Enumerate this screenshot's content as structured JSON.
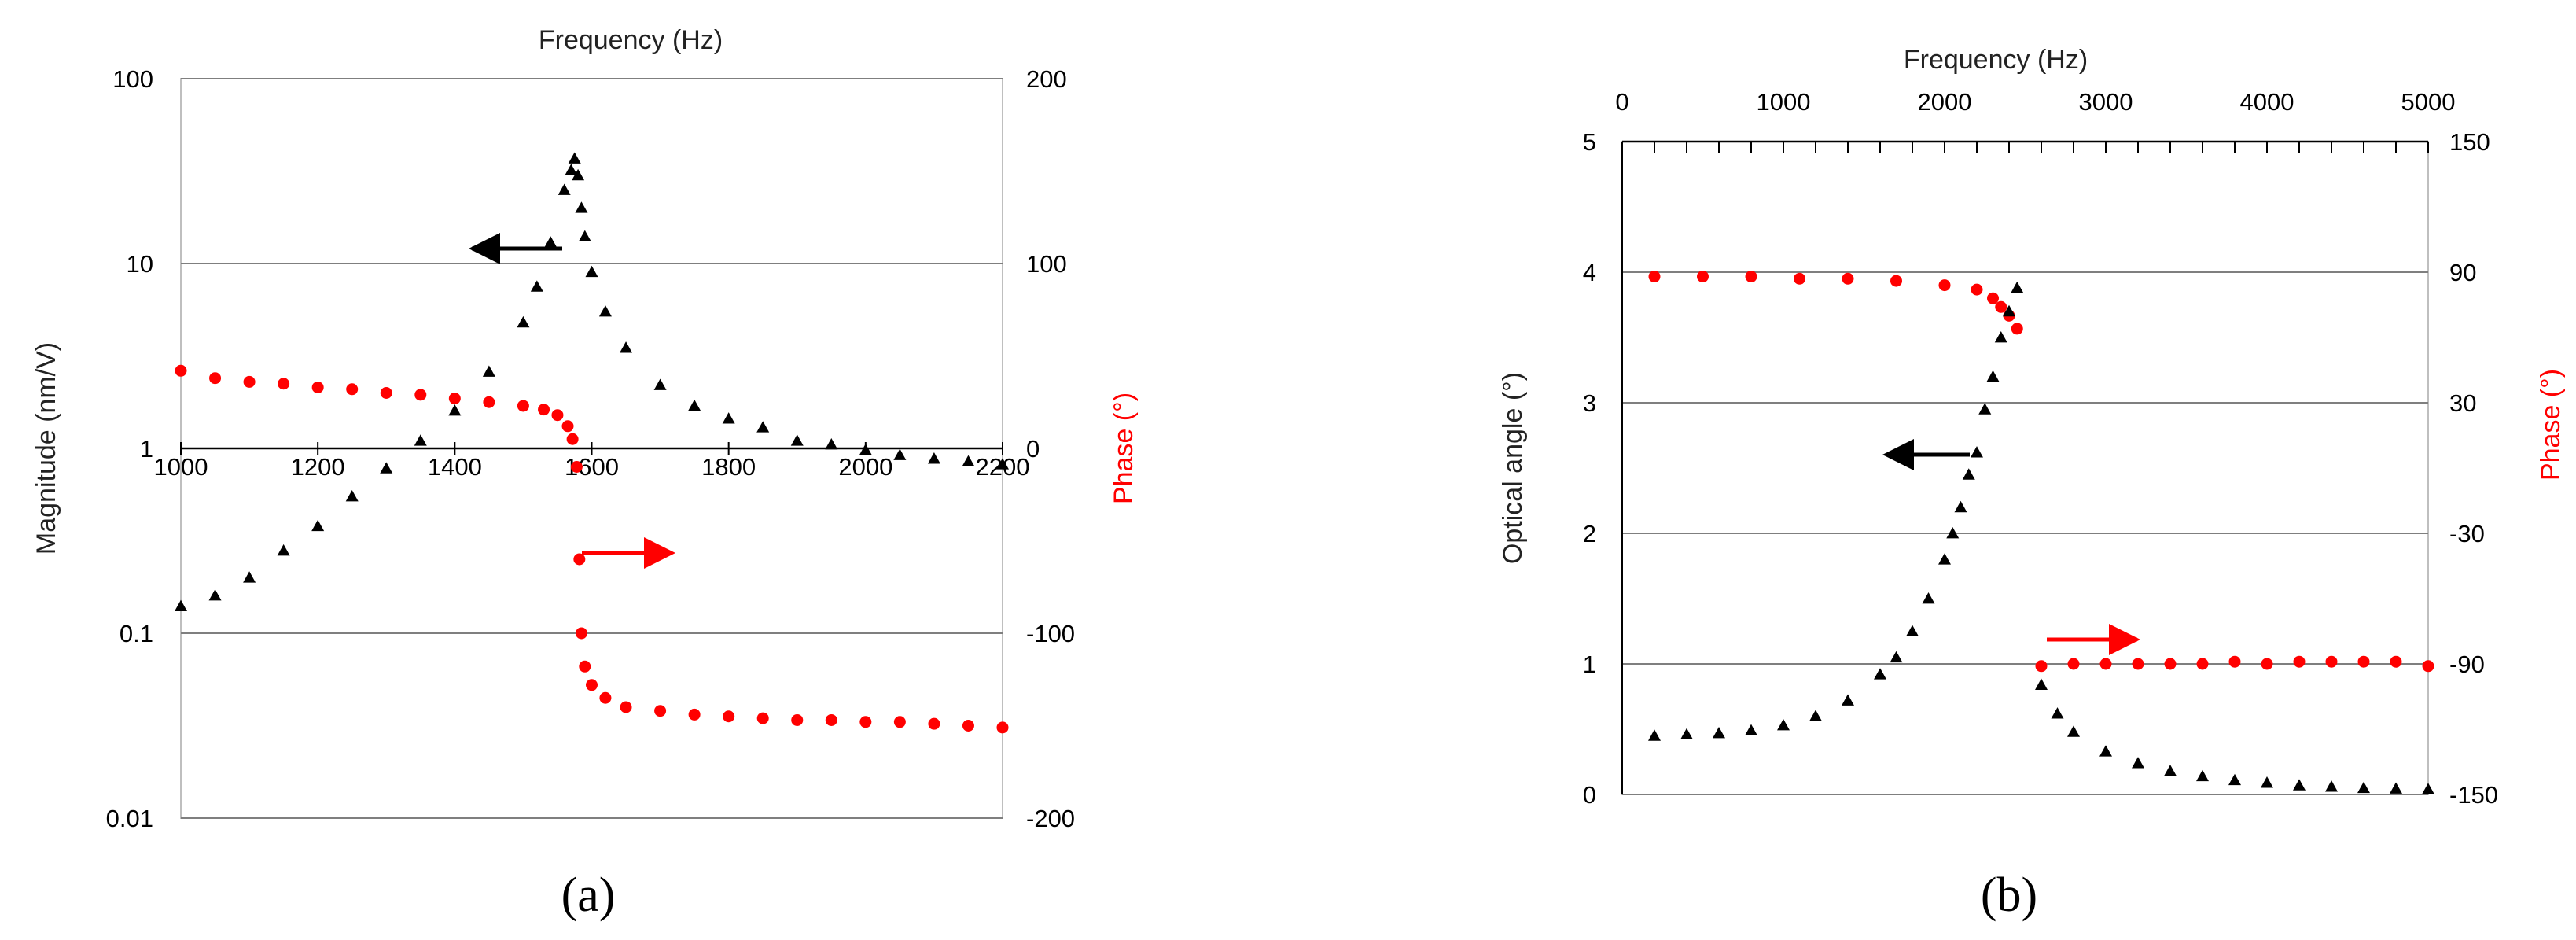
{
  "figure": {
    "panel_a_label": "(a)",
    "panel_b_label": "(b)"
  },
  "chart_data": [
    {
      "panel": "(a)",
      "type": "scatter",
      "title": "",
      "xlabel": "Frequency (Hz)",
      "ylabel_left": "Magnitude (nm/V)",
      "ylabel_right": "Phase (°)",
      "xlim": [
        1000,
        2200
      ],
      "y_left_scale": "log",
      "y_left_lim": [
        0.01,
        100
      ],
      "y_right_lim": [
        -200,
        200
      ],
      "x_ticks": [
        "1000",
        "1200",
        "1400",
        "1600",
        "1800",
        "2000",
        "2200"
      ],
      "y_left_ticks": [
        "0.01",
        "0.1",
        "1",
        "10",
        "100"
      ],
      "y_right_ticks": [
        "-200",
        "-100",
        "0",
        "100",
        "200"
      ],
      "grid": "horizontal",
      "colors": {
        "magnitude": "#000000",
        "phase": "#ff0000"
      },
      "annotations": [
        {
          "type": "arrow",
          "direction": "left",
          "color": "#000000",
          "refers_to": "left axis"
        },
        {
          "type": "arrow",
          "direction": "right",
          "color": "#ff0000",
          "refers_to": "right axis"
        }
      ],
      "series": [
        {
          "axis": "left",
          "marker": "triangle",
          "x": [
            1000,
            1050,
            1100,
            1150,
            1200,
            1250,
            1300,
            1350,
            1400,
            1450,
            1500,
            1520,
            1540,
            1560,
            1570,
            1575,
            1580,
            1585,
            1590,
            1600,
            1620,
            1650,
            1700,
            1750,
            1800,
            1850,
            1900,
            1950,
            2000,
            2050,
            2100,
            2150,
            2200
          ],
          "values": [
            0.14,
            0.16,
            0.2,
            0.28,
            0.38,
            0.55,
            0.78,
            1.1,
            1.6,
            2.6,
            4.8,
            7.5,
            13,
            25,
            32,
            37,
            30,
            20,
            14,
            9,
            5.5,
            3.5,
            2.2,
            1.7,
            1.45,
            1.3,
            1.1,
            1.05,
            0.98,
            0.92,
            0.88,
            0.85,
            0.82
          ]
        },
        {
          "axis": "right",
          "marker": "circle",
          "x": [
            1000,
            1050,
            1100,
            1150,
            1200,
            1250,
            1300,
            1350,
            1400,
            1450,
            1500,
            1530,
            1550,
            1565,
            1572,
            1578,
            1582,
            1585,
            1590,
            1600,
            1620,
            1650,
            1700,
            1750,
            1800,
            1850,
            1900,
            1950,
            2000,
            2050,
            2100,
            2150,
            2200
          ],
          "values": [
            42,
            38,
            36,
            35,
            33,
            32,
            30,
            29,
            27,
            25,
            23,
            21,
            18,
            12,
            5,
            -10,
            -60,
            -100,
            -118,
            -128,
            -135,
            -140,
            -142,
            -144,
            -145,
            -146,
            -147,
            -147,
            -148,
            -148,
            -149,
            -150,
            -151
          ]
        }
      ]
    },
    {
      "panel": "(b)",
      "type": "scatter",
      "title": "",
      "xlabel": "Frequency (Hz)",
      "ylabel_left": "Optical angle (°)",
      "ylabel_right": "Phase (°)",
      "xlim": [
        0,
        5000
      ],
      "y_left_lim": [
        0,
        5
      ],
      "y_right_lim": [
        -150,
        150
      ],
      "x_ticks": [
        "0",
        "1000",
        "2000",
        "3000",
        "4000",
        "5000"
      ],
      "y_left_ticks": [
        "0",
        "1",
        "2",
        "3",
        "4",
        "5"
      ],
      "y_right_ticks": [
        "-150",
        "-90",
        "-30",
        "30",
        "90",
        "150"
      ],
      "grid": "horizontal",
      "colors": {
        "optical_angle": "#000000",
        "phase": "#ff0000"
      },
      "annotations": [
        {
          "type": "arrow",
          "direction": "left",
          "color": "#000000",
          "refers_to": "left axis"
        },
        {
          "type": "arrow",
          "direction": "right",
          "color": "#ff0000",
          "refers_to": "right axis"
        }
      ],
      "series": [
        {
          "axis": "left",
          "marker": "triangle",
          "x": [
            200,
            400,
            600,
            800,
            1000,
            1200,
            1400,
            1600,
            1700,
            1800,
            1900,
            2000,
            2050,
            2100,
            2150,
            2200,
            2250,
            2300,
            2350,
            2400,
            2450,
            2600,
            2700,
            2800,
            3000,
            3200,
            3400,
            3600,
            3800,
            4000,
            4200,
            4400,
            4600,
            4800,
            5000
          ],
          "values": [
            0.45,
            0.46,
            0.47,
            0.49,
            0.53,
            0.6,
            0.72,
            0.92,
            1.05,
            1.25,
            1.5,
            1.8,
            2.0,
            2.2,
            2.45,
            2.62,
            2.95,
            3.2,
            3.5,
            3.7,
            3.88,
            0.84,
            0.62,
            0.48,
            0.33,
            0.24,
            0.18,
            0.14,
            0.11,
            0.09,
            0.07,
            0.06,
            0.05,
            0.045,
            0.04
          ]
        },
        {
          "axis": "right",
          "marker": "circle",
          "x": [
            200,
            500,
            800,
            1100,
            1400,
            1700,
            2000,
            2200,
            2300,
            2350,
            2400,
            2450,
            2600,
            2800,
            3000,
            3200,
            3400,
            3600,
            3800,
            4000,
            4200,
            4400,
            4600,
            4800,
            5000
          ],
          "values": [
            88,
            88,
            88,
            87,
            87,
            86,
            84,
            82,
            78,
            74,
            70,
            64,
            -91,
            -90,
            -90,
            -90,
            -90,
            -90,
            -89,
            -90,
            -89,
            -89,
            -89,
            -89,
            -91
          ]
        }
      ]
    }
  ]
}
